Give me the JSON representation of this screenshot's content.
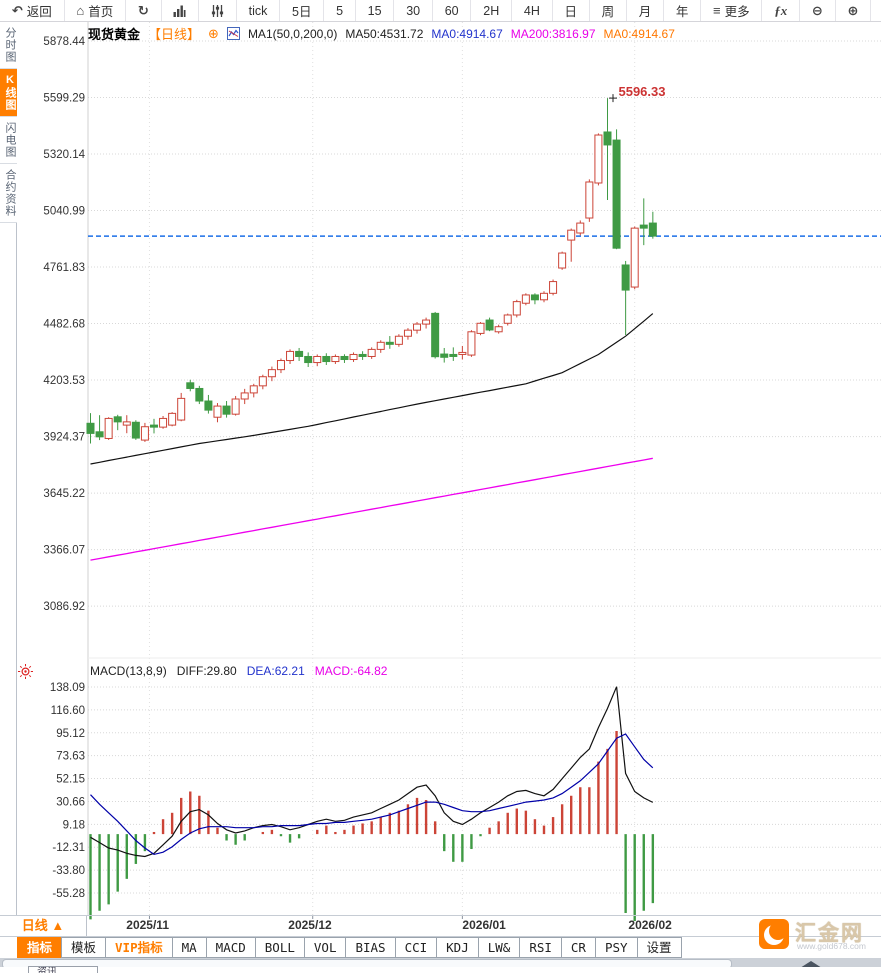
{
  "colors": {
    "accent_orange": "#ff7e00",
    "bull_red": "#cc4437",
    "bear_green": "#3f9a44",
    "ma50_black": "#111111",
    "ma200_magenta": "#ee00ee",
    "diff_black": "#111111",
    "dea_blue": "#0000a8",
    "hist_red": "#cc4437",
    "hist_green": "#3f9a44",
    "current_price_blue": "#1a6ee8",
    "peak_red": "#cc3333",
    "axis_text": "#333333",
    "grid": "#d8d8d8"
  },
  "toolbar": {
    "items": [
      {
        "name": "back-button",
        "icon": "back-arrow-icon",
        "label": "返回"
      },
      {
        "name": "home-button",
        "icon": "home-icon",
        "label": "首页"
      },
      {
        "name": "refresh-button",
        "icon": "refresh-icon",
        "label": ""
      },
      {
        "name": "chart-style-button",
        "icon": "bar-chart-icon",
        "label": ""
      },
      {
        "name": "indicator-panel-button",
        "icon": "sliders-icon",
        "label": ""
      },
      {
        "name": "interval-tick-button",
        "icon": "",
        "label": "tick"
      },
      {
        "name": "interval-5day-button",
        "icon": "",
        "label": "5日"
      },
      {
        "name": "interval-5min-button",
        "icon": "",
        "label": "5"
      },
      {
        "name": "interval-15min-button",
        "icon": "",
        "label": "15"
      },
      {
        "name": "interval-30min-button",
        "icon": "",
        "label": "30"
      },
      {
        "name": "interval-60min-button",
        "icon": "",
        "label": "60"
      },
      {
        "name": "interval-2h-button",
        "icon": "",
        "label": "2H"
      },
      {
        "name": "interval-4h-button",
        "icon": "",
        "label": "4H"
      },
      {
        "name": "interval-day-button",
        "icon": "",
        "label": "日"
      },
      {
        "name": "interval-week-button",
        "icon": "",
        "label": "周"
      },
      {
        "name": "interval-month-button",
        "icon": "",
        "label": "月"
      },
      {
        "name": "interval-year-button",
        "icon": "",
        "label": "年"
      },
      {
        "name": "more-button",
        "icon": "menu-icon",
        "label": "更多"
      },
      {
        "name": "formula-button",
        "icon": "fx-icon",
        "label": ""
      },
      {
        "name": "zoom-out-button",
        "icon": "zoom-out-icon",
        "label": ""
      },
      {
        "name": "zoom-in-button",
        "icon": "zoom-in-icon",
        "label": ""
      }
    ]
  },
  "sidebar": {
    "items": [
      {
        "name": "sidebar-item-time-chart",
        "label": "分时图",
        "active": false
      },
      {
        "name": "sidebar-item-kline-chart",
        "label": "K线图",
        "active": true
      },
      {
        "name": "sidebar-item-lightning-chart",
        "label": "闪电图",
        "active": false
      },
      {
        "name": "sidebar-item-contract-info",
        "label": "合约资料",
        "active": false
      }
    ]
  },
  "chart_header": {
    "symbol": "现货黄金",
    "period": "【日线】",
    "ma_settings": "MA1(50,0,200,0)",
    "ma50": "MA50:4531.72",
    "ma0_blue": "MA0:4914.67",
    "ma200": "MA200:3816.97",
    "ma0_orange": "MA0:4914.67"
  },
  "macd_header": {
    "params": "MACD(13,8,9)",
    "diff": "DIFF:29.80",
    "dea": "DEA:62.21",
    "macd": "MACD:-64.82"
  },
  "bottom": {
    "period_label": "日线 ▲",
    "tabs": [
      {
        "name": "tab-indicator",
        "label": "指标",
        "style": "active"
      },
      {
        "name": "tab-template",
        "label": "模板",
        "style": ""
      },
      {
        "name": "tab-vip-indicator",
        "label": "VIP指标",
        "style": "vip"
      },
      {
        "name": "tab-ma",
        "label": "MA",
        "style": ""
      },
      {
        "name": "tab-macd",
        "label": "MACD",
        "style": ""
      },
      {
        "name": "tab-boll",
        "label": "BOLL",
        "style": ""
      },
      {
        "name": "tab-vol",
        "label": "VOL",
        "style": ""
      },
      {
        "name": "tab-bias",
        "label": "BIAS",
        "style": ""
      },
      {
        "name": "tab-cci",
        "label": "CCI",
        "style": ""
      },
      {
        "name": "tab-kdj",
        "label": "KDJ",
        "style": ""
      },
      {
        "name": "tab-lwr",
        "label": "LW&",
        "style": ""
      },
      {
        "name": "tab-rsi",
        "label": "RSI",
        "style": ""
      },
      {
        "name": "tab-cr",
        "label": "CR",
        "style": ""
      },
      {
        "name": "tab-psy",
        "label": "PSY",
        "style": ""
      },
      {
        "name": "tab-settings",
        "label": "设置",
        "style": ""
      }
    ],
    "partial_tab": "资讯"
  },
  "logo": {
    "title": "汇金网",
    "url": "www.gold678.com"
  },
  "chart_data": [
    {
      "type": "candlestick",
      "title": "现货黄金 日线",
      "y_ticks": [
        5878.44,
        5599.29,
        5320.14,
        5040.99,
        4761.83,
        4482.68,
        4203.53,
        3924.37,
        3645.22,
        3366.07,
        3086.92
      ],
      "months": [
        {
          "label": "2025/11",
          "grid_index": 6.5,
          "label_index": 6.3
        },
        {
          "label": "2025/12",
          "grid_index": 24.5,
          "label_index": 24.2
        },
        {
          "label": "2026/01",
          "grid_index": 41,
          "label_index": 43.4
        },
        {
          "label": "2026/02",
          "grid_index": 60,
          "label_index": 61.7
        }
      ],
      "current_price": 4914.67,
      "peak": {
        "label": "5596.33",
        "value": 5596.33,
        "index": 57
      },
      "ma50_last": 4531.72,
      "ma200_last": 3816.97,
      "ma50_points": [
        [
          0,
          3789
        ],
        [
          6,
          3840
        ],
        [
          12,
          3890
        ],
        [
          18,
          3930
        ],
        [
          24,
          3975
        ],
        [
          30,
          4030
        ],
        [
          36,
          4085
        ],
        [
          42,
          4135
        ],
        [
          48,
          4185
        ],
        [
          52,
          4240
        ],
        [
          56,
          4330
        ],
        [
          59,
          4420
        ],
        [
          62,
          4531.72
        ]
      ],
      "ma200_points": [
        [
          0,
          3314
        ],
        [
          62,
          3816.97
        ]
      ],
      "candles": [
        [
          3990,
          4040,
          3890,
          3940
        ],
        [
          3948,
          4030,
          3907,
          3923
        ],
        [
          3915,
          4020,
          3908,
          4014
        ],
        [
          4022,
          4032,
          3956,
          3997
        ],
        [
          3981,
          4030,
          3941,
          3997
        ],
        [
          3995,
          4005,
          3908,
          3917
        ],
        [
          3907,
          3992,
          3898,
          3973
        ],
        [
          3981,
          4012,
          3940,
          3971
        ],
        [
          3971,
          4026,
          3963,
          4014
        ],
        [
          3981,
          4045,
          3975,
          4039
        ],
        [
          4006,
          4140,
          4000,
          4113
        ],
        [
          4190,
          4205,
          4148,
          4162
        ],
        [
          4162,
          4175,
          4085,
          4100
        ],
        [
          4100,
          4130,
          4038,
          4055
        ],
        [
          4020,
          4090,
          3995,
          4075
        ],
        [
          4075,
          4100,
          4018,
          4035
        ],
        [
          4035,
          4125,
          4028,
          4110
        ],
        [
          4110,
          4160,
          4085,
          4140
        ],
        [
          4140,
          4185,
          4118,
          4175
        ],
        [
          4175,
          4230,
          4158,
          4220
        ],
        [
          4220,
          4270,
          4198,
          4255
        ],
        [
          4255,
          4310,
          4238,
          4300
        ],
        [
          4300,
          4355,
          4283,
          4345
        ],
        [
          4345,
          4362,
          4298,
          4320
        ],
        [
          4320,
          4340,
          4268,
          4290
        ],
        [
          4290,
          4330,
          4272,
          4320
        ],
        [
          4320,
          4336,
          4278,
          4295
        ],
        [
          4295,
          4330,
          4283,
          4320
        ],
        [
          4320,
          4331,
          4288,
          4305
        ],
        [
          4305,
          4340,
          4293,
          4330
        ],
        [
          4330,
          4346,
          4303,
          4320
        ],
        [
          4320,
          4365,
          4308,
          4355
        ],
        [
          4355,
          4400,
          4338,
          4390
        ],
        [
          4390,
          4421,
          4358,
          4380
        ],
        [
          4380,
          4430,
          4368,
          4420
        ],
        [
          4420,
          4460,
          4403,
          4450
        ],
        [
          4450,
          4490,
          4433,
          4480
        ],
        [
          4480,
          4512,
          4458,
          4500
        ],
        [
          4533,
          4540,
          4310,
          4319
        ],
        [
          4332,
          4362,
          4290,
          4316
        ],
        [
          4330,
          4365,
          4298,
          4320
        ],
        [
          4330,
          4372,
          4305,
          4340
        ],
        [
          4327,
          4450,
          4318,
          4442
        ],
        [
          4434,
          4490,
          4425,
          4484
        ],
        [
          4500,
          4512,
          4445,
          4451
        ],
        [
          4442,
          4477,
          4433,
          4467
        ],
        [
          4484,
          4532,
          4473,
          4525
        ],
        [
          4525,
          4600,
          4513,
          4591
        ],
        [
          4583,
          4632,
          4573,
          4624
        ],
        [
          4624,
          4632,
          4578,
          4600
        ],
        [
          4600,
          4642,
          4588,
          4632
        ],
        [
          4632,
          4700,
          4622,
          4690
        ],
        [
          4757,
          4838,
          4748,
          4831
        ],
        [
          4895,
          4952,
          4788,
          4944
        ],
        [
          4930,
          4992,
          4918,
          4979
        ],
        [
          5004,
          5195,
          4985,
          5182
        ],
        [
          5177,
          5422,
          5165,
          5414
        ],
        [
          5429,
          5596.33,
          5093,
          5365
        ],
        [
          5389,
          5442,
          4850,
          4855
        ],
        [
          4772,
          4792,
          4426,
          4648
        ],
        [
          4663,
          4962,
          4652,
          4954
        ],
        [
          4969,
          5101,
          4870,
          4954
        ],
        [
          4979,
          5035,
          4902,
          4914.67
        ]
      ]
    },
    {
      "type": "macd",
      "params": "MACD(13,8,9)",
      "y_ticks": [
        138.09,
        116.6,
        95.12,
        73.63,
        52.15,
        30.66,
        9.18,
        -12.31,
        -33.8,
        -55.28
      ],
      "last": {
        "diff": 29.8,
        "dea": 62.21,
        "macd": -64.82
      },
      "diff": [
        -3,
        -8,
        -13,
        -15,
        -18,
        -20,
        -21,
        -18,
        -10,
        -2,
        12,
        21,
        23,
        18,
        10,
        4,
        1,
        3,
        6,
        8,
        9,
        7,
        4,
        6,
        9,
        12,
        14,
        12,
        13,
        16,
        18,
        20,
        24,
        28,
        32,
        38,
        44,
        46,
        36,
        20,
        12,
        9,
        14,
        20,
        25,
        30,
        36,
        40,
        41,
        38,
        36,
        42,
        52,
        62,
        72,
        80,
        100,
        118,
        138.4,
        57,
        40,
        34,
        29.8
      ],
      "dea": [
        37,
        28,
        20,
        12,
        3,
        -6,
        -13,
        -19,
        -17,
        -12,
        -5,
        1,
        5,
        7,
        7,
        7,
        6,
        6,
        6,
        7,
        7,
        8,
        8,
        8,
        9,
        10,
        10,
        11,
        11,
        12,
        13,
        14,
        16,
        18,
        21,
        24,
        27,
        30,
        30,
        28,
        25,
        22,
        21,
        21,
        22,
        24,
        26,
        28,
        30,
        31,
        32,
        34,
        38,
        44,
        50,
        58,
        66,
        78,
        90,
        94,
        82,
        70,
        62.21
      ]
    }
  ]
}
